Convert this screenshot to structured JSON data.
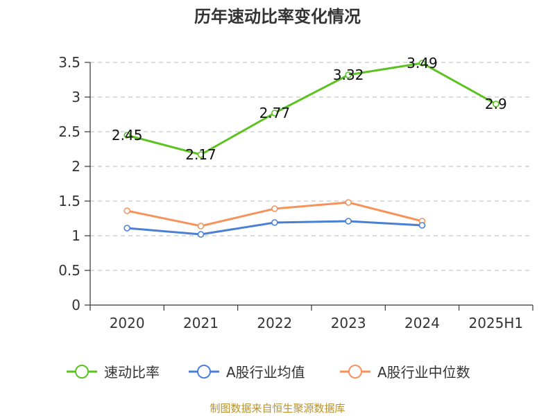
{
  "chart_data": {
    "type": "line",
    "title": "历年速动比率变化情况",
    "categories": [
      "2020",
      "2021",
      "2022",
      "2023",
      "2024",
      "2025H1"
    ],
    "ylim": [
      0,
      3.5
    ],
    "y_ticks": [
      "0",
      "0.5",
      "1",
      "1.5",
      "2",
      "2.5",
      "3",
      "3.5"
    ],
    "grid": true,
    "legend_position": "bottom",
    "series": [
      {
        "name": "速动比率",
        "color": "#5cc21f",
        "values": [
          2.45,
          2.17,
          2.77,
          3.32,
          3.49,
          2.9
        ],
        "labels": [
          "2.45",
          "2.17",
          "2.77",
          "3.32",
          "3.49",
          "2.9"
        ]
      },
      {
        "name": "A股行业均值",
        "color": "#4a7fd6",
        "values": [
          1.11,
          1.02,
          1.19,
          1.21,
          1.15,
          null
        ]
      },
      {
        "name": "A股行业中位数",
        "color": "#f5935a",
        "values": [
          1.36,
          1.14,
          1.39,
          1.48,
          1.21,
          null
        ]
      }
    ]
  },
  "source_text": "制图数据来自恒生聚源数据库"
}
